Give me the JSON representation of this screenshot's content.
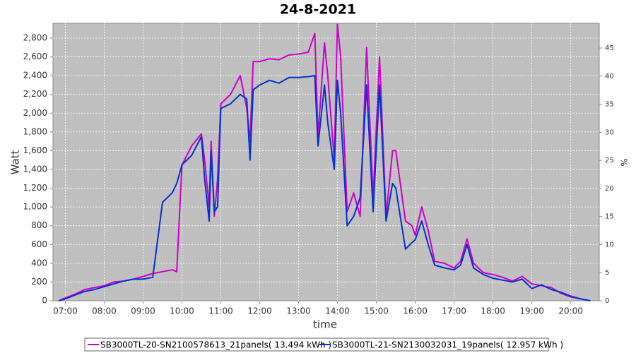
{
  "chart_data": {
    "type": "line",
    "title": "24-8-2021",
    "x_label": "time",
    "y_label": "Watt",
    "y2_label": "%",
    "grid": true,
    "legend": "bottom",
    "x": [
      "06:50",
      "07:00",
      "07:15",
      "07:30",
      "07:45",
      "08:00",
      "08:15",
      "08:30",
      "08:45",
      "09:00",
      "09:15",
      "09:30",
      "09:45",
      "09:52",
      "10:00",
      "10:15",
      "10:30",
      "10:35",
      "10:42",
      "10:45",
      "10:50",
      "10:55",
      "11:00",
      "11:15",
      "11:30",
      "11:40",
      "11:45",
      "11:50",
      "12:00",
      "12:15",
      "12:30",
      "12:45",
      "13:00",
      "13:15",
      "13:25",
      "13:30",
      "13:40",
      "13:45",
      "13:55",
      "14:00",
      "14:05",
      "14:15",
      "14:25",
      "14:35",
      "14:45",
      "14:55",
      "15:05",
      "15:15",
      "15:25",
      "15:30",
      "15:45",
      "15:55",
      "16:00",
      "16:10",
      "16:20",
      "16:30",
      "16:45",
      "17:00",
      "17:10",
      "17:20",
      "17:30",
      "17:45",
      "18:00",
      "18:15",
      "18:30",
      "18:45",
      "19:00",
      "19:15",
      "19:30",
      "19:45",
      "20:00",
      "20:15",
      "20:30"
    ],
    "series": [
      {
        "name": "SB3000TL-20-SN2100578613_21panels( 13.494 kWh )",
        "color": "#cc00cc",
        "values": [
          0,
          30,
          70,
          120,
          140,
          160,
          200,
          210,
          230,
          260,
          290,
          310,
          330,
          310,
          1450,
          1650,
          1780,
          1500,
          1000,
          1700,
          900,
          1300,
          2100,
          2200,
          2400,
          2050,
          1700,
          2550,
          2550,
          2580,
          2570,
          2620,
          2630,
          2650,
          2850,
          1750,
          2750,
          2400,
          1500,
          2950,
          2600,
          950,
          1150,
          900,
          2700,
          1100,
          2600,
          900,
          1600,
          1600,
          850,
          800,
          700,
          1000,
          750,
          420,
          400,
          350,
          420,
          660,
          400,
          300,
          280,
          250,
          210,
          260,
          180,
          160,
          140,
          80,
          40,
          20,
          0
        ]
      },
      {
        "name": "SB3000TL-21-SN2130032031_19panels( 12.957 kWh )",
        "color": "#0033cc",
        "values": [
          0,
          20,
          60,
          100,
          120,
          150,
          180,
          210,
          230,
          230,
          250,
          1050,
          1150,
          1250,
          1450,
          1550,
          1750,
          1300,
          850,
          1600,
          950,
          1000,
          2050,
          2100,
          2200,
          2150,
          1500,
          2250,
          2300,
          2350,
          2320,
          2380,
          2380,
          2390,
          2400,
          1650,
          2300,
          1900,
          1400,
          2350,
          2000,
          800,
          900,
          1100,
          2300,
          950,
          2300,
          850,
          1250,
          1200,
          550,
          620,
          650,
          850,
          600,
          380,
          350,
          330,
          380,
          600,
          350,
          280,
          240,
          220,
          200,
          230,
          130,
          170,
          120,
          90,
          50,
          20,
          0
        ]
      }
    ],
    "xlim": [
      "06:41",
      "20:44"
    ],
    "xticks": [
      "07:00",
      "08:00",
      "09:00",
      "10:00",
      "11:00",
      "12:00",
      "13:00",
      "14:00",
      "15:00",
      "16:00",
      "17:00",
      "18:00",
      "19:00",
      "20:00"
    ],
    "ylim": [
      0,
      2958
    ],
    "yticks": [
      0,
      200,
      400,
      600,
      800,
      {
        "value": 1000,
        "label": "1,000"
      },
      {
        "value": 1200,
        "label": "1,200"
      },
      {
        "value": 1400,
        "label": "1,400"
      },
      {
        "value": 1600,
        "label": "1,600"
      },
      {
        "value": 1800,
        "label": "1,800"
      },
      {
        "value": 2000,
        "label": "2,000"
      },
      {
        "value": 2200,
        "label": "2,200"
      },
      {
        "value": 2400,
        "label": "2,400"
      },
      {
        "value": 2600,
        "label": "2,600"
      },
      {
        "value": 2800,
        "label": "2,800"
      }
    ],
    "y2lim": [
      0,
      49.4
    ],
    "y2ticks": [
      0,
      5,
      10,
      15,
      20,
      25,
      30,
      35,
      40,
      45
    ]
  }
}
